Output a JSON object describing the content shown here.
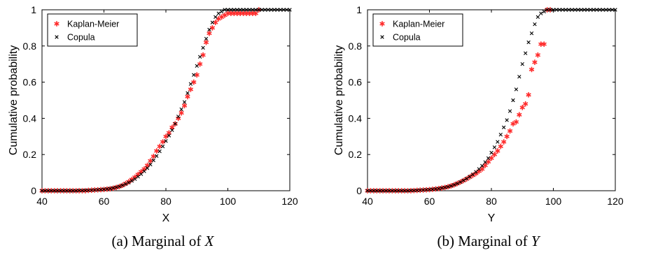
{
  "colors": {
    "kaplan_meier": "#ff2a2a",
    "copula": "#000000",
    "axis": "#000000"
  },
  "chart_data": [
    {
      "type": "scatter",
      "caption_prefix": "(a) Marginal of ",
      "caption_var": "X",
      "xlabel": "X",
      "ylabel": "Cumulative probability",
      "xlim": [
        40,
        120
      ],
      "ylim": [
        0,
        1
      ],
      "xticks": [
        "40",
        "60",
        "80",
        "100",
        "120"
      ],
      "yticks": [
        "0",
        "0.2",
        "0.4",
        "0.6",
        "0.8",
        "1"
      ],
      "grid": false,
      "legend_position": "top-left",
      "series": [
        {
          "name": "Kaplan-Meier",
          "marker": "asterisk",
          "color": "#ff2a2a",
          "x": [
            40,
            41,
            42,
            43,
            44,
            45,
            46,
            47,
            48,
            49,
            50,
            51,
            52,
            53,
            54,
            55,
            56,
            57,
            58,
            59,
            60,
            61,
            62,
            63,
            64,
            65,
            66,
            67,
            68,
            69,
            70,
            71,
            72,
            73,
            74,
            75,
            76,
            77,
            78,
            79,
            80,
            81,
            82,
            83,
            84,
            85,
            86,
            87,
            88,
            89,
            90,
            91,
            92,
            93,
            94,
            95,
            96,
            97,
            98,
            99,
            100,
            101,
            102,
            103,
            104,
            105,
            106,
            107,
            108,
            109,
            110
          ],
          "y": [
            0,
            0,
            0,
            0,
            0,
            0,
            0,
            0,
            0,
            0,
            0,
            0,
            0,
            0,
            0,
            0.002,
            0.003,
            0.004,
            0.005,
            0.006,
            0.007,
            0.009,
            0.011,
            0.014,
            0.018,
            0.023,
            0.03,
            0.04,
            0.05,
            0.062,
            0.075,
            0.09,
            0.105,
            0.12,
            0.14,
            0.165,
            0.19,
            0.22,
            0.245,
            0.27,
            0.3,
            0.32,
            0.35,
            0.37,
            0.4,
            0.43,
            0.47,
            0.52,
            0.56,
            0.6,
            0.64,
            0.7,
            0.75,
            0.82,
            0.87,
            0.9,
            0.93,
            0.95,
            0.96,
            0.97,
            0.98,
            0.98,
            0.98,
            0.98,
            0.98,
            0.98,
            0.98,
            0.98,
            0.98,
            0.98,
            1.0
          ]
        },
        {
          "name": "Copula",
          "marker": "x",
          "color": "#000000",
          "x": [
            40,
            41,
            42,
            43,
            44,
            45,
            46,
            47,
            48,
            49,
            50,
            51,
            52,
            53,
            54,
            55,
            56,
            57,
            58,
            59,
            60,
            61,
            62,
            63,
            64,
            65,
            66,
            67,
            68,
            69,
            70,
            71,
            72,
            73,
            74,
            75,
            76,
            77,
            78,
            79,
            80,
            81,
            82,
            83,
            84,
            85,
            86,
            87,
            88,
            89,
            90,
            91,
            92,
            93,
            94,
            95,
            96,
            97,
            98,
            99,
            100,
            101,
            102,
            103,
            104,
            105,
            106,
            107,
            108,
            109,
            110,
            111,
            112,
            113,
            114,
            115,
            116,
            117,
            118,
            119,
            120
          ],
          "y": [
            0,
            0,
            0,
            0,
            0,
            0,
            0,
            0,
            0,
            0,
            0,
            0,
            0.001,
            0.001,
            0.002,
            0.002,
            0.003,
            0.004,
            0.005,
            0.006,
            0.008,
            0.01,
            0.012,
            0.015,
            0.019,
            0.024,
            0.03,
            0.037,
            0.045,
            0.055,
            0.065,
            0.078,
            0.092,
            0.108,
            0.125,
            0.145,
            0.168,
            0.192,
            0.218,
            0.245,
            0.275,
            0.305,
            0.335,
            0.37,
            0.41,
            0.45,
            0.49,
            0.54,
            0.59,
            0.64,
            0.69,
            0.74,
            0.79,
            0.84,
            0.89,
            0.93,
            0.96,
            0.98,
            0.99,
            1,
            1,
            1,
            1,
            1,
            1,
            1,
            1,
            1,
            1,
            1,
            1,
            1,
            1,
            1,
            1,
            1,
            1,
            1,
            1,
            1,
            1
          ]
        }
      ]
    },
    {
      "type": "scatter",
      "caption_prefix": "(b) Marginal of ",
      "caption_var": "Y",
      "xlabel": "Y",
      "ylabel": "Cumulative probability",
      "xlim": [
        40,
        120
      ],
      "ylim": [
        0,
        1
      ],
      "xticks": [
        "40",
        "60",
        "80",
        "100",
        "120"
      ],
      "yticks": [
        "0",
        "0.2",
        "0.4",
        "0.6",
        "0.8",
        "1"
      ],
      "grid": false,
      "legend_position": "top-left",
      "series": [
        {
          "name": "Kaplan-Meier",
          "marker": "asterisk",
          "color": "#ff2a2a",
          "x": [
            40,
            41,
            42,
            43,
            44,
            45,
            46,
            47,
            48,
            49,
            50,
            51,
            52,
            53,
            54,
            55,
            56,
            57,
            58,
            59,
            60,
            61,
            62,
            63,
            64,
            65,
            66,
            67,
            68,
            69,
            70,
            71,
            72,
            73,
            74,
            75,
            76,
            77,
            78,
            79,
            80,
            81,
            82,
            83,
            84,
            85,
            86,
            87,
            88,
            89,
            90,
            91,
            92,
            93,
            94,
            95,
            96,
            97,
            98,
            99
          ],
          "y": [
            0,
            0,
            0,
            0,
            0,
            0,
            0,
            0,
            0,
            0,
            0,
            0,
            0,
            0,
            0,
            0.001,
            0.002,
            0.003,
            0.004,
            0.005,
            0.006,
            0.008,
            0.01,
            0.012,
            0.015,
            0.018,
            0.022,
            0.027,
            0.033,
            0.04,
            0.048,
            0.056,
            0.065,
            0.075,
            0.085,
            0.095,
            0.108,
            0.12,
            0.14,
            0.16,
            0.18,
            0.2,
            0.22,
            0.245,
            0.27,
            0.3,
            0.33,
            0.37,
            0.38,
            0.42,
            0.46,
            0.48,
            0.53,
            0.67,
            0.71,
            0.75,
            0.81,
            0.81,
            1.0,
            1.0
          ]
        },
        {
          "name": "Copula",
          "marker": "x",
          "color": "#000000",
          "x": [
            40,
            41,
            42,
            43,
            44,
            45,
            46,
            47,
            48,
            49,
            50,
            51,
            52,
            53,
            54,
            55,
            56,
            57,
            58,
            59,
            60,
            61,
            62,
            63,
            64,
            65,
            66,
            67,
            68,
            69,
            70,
            71,
            72,
            73,
            74,
            75,
            76,
            77,
            78,
            79,
            80,
            81,
            82,
            83,
            84,
            85,
            86,
            87,
            88,
            89,
            90,
            91,
            92,
            93,
            94,
            95,
            96,
            97,
            98,
            99,
            100,
            101,
            102,
            103,
            104,
            105,
            106,
            107,
            108,
            109,
            110,
            111,
            112,
            113,
            114,
            115,
            116,
            117,
            118,
            119,
            120
          ],
          "y": [
            0,
            0,
            0,
            0,
            0,
            0,
            0,
            0,
            0,
            0,
            0,
            0,
            0,
            0,
            0.001,
            0.001,
            0.002,
            0.003,
            0.004,
            0.005,
            0.006,
            0.008,
            0.01,
            0.012,
            0.015,
            0.018,
            0.022,
            0.027,
            0.033,
            0.04,
            0.048,
            0.057,
            0.067,
            0.078,
            0.09,
            0.104,
            0.12,
            0.138,
            0.158,
            0.18,
            0.21,
            0.24,
            0.27,
            0.31,
            0.35,
            0.39,
            0.44,
            0.5,
            0.56,
            0.63,
            0.7,
            0.76,
            0.82,
            0.87,
            0.92,
            0.96,
            0.98,
            0.99,
            1,
            1,
            1,
            1,
            1,
            1,
            1,
            1,
            1,
            1,
            1,
            1,
            1,
            1,
            1,
            1,
            1,
            1,
            1,
            1,
            1,
            1,
            1
          ]
        }
      ]
    }
  ]
}
